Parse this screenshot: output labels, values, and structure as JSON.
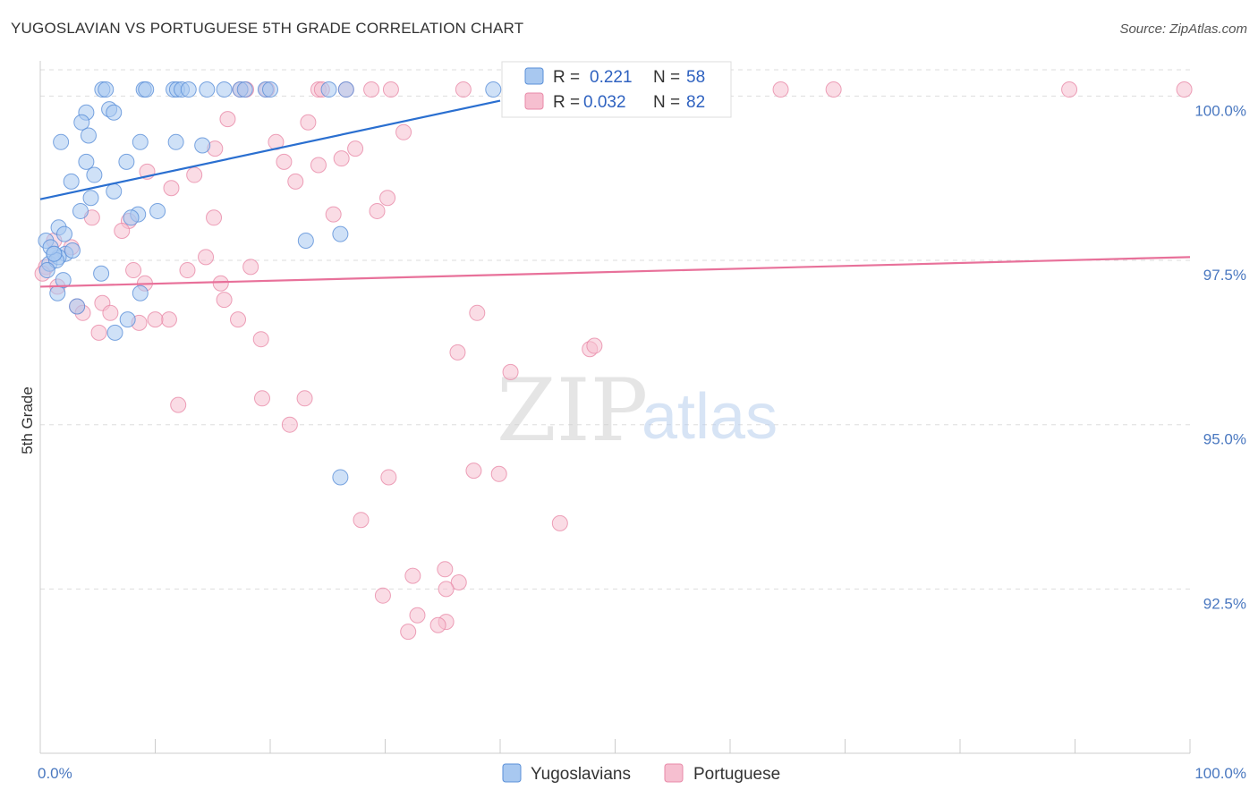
{
  "title": "YUGOSLAVIAN VS PORTUGUESE 5TH GRADE CORRELATION CHART",
  "source": "Source: ZipAtlas.com",
  "watermark": {
    "zip": "ZIP",
    "atlas": "atlas"
  },
  "colors": {
    "blue_fill": "#a8c8f0",
    "blue_stroke": "#5a8fd8",
    "blue_line": "#2a6fd0",
    "pink_fill": "#f6bfd0",
    "pink_stroke": "#e88aa8",
    "pink_line": "#e8719a",
    "grid": "#dddddd",
    "tick_text": "#4a78c0"
  },
  "legend": {
    "rows": [
      {
        "r_label": "R =",
        "r_value": "0.221",
        "n_label": "N =",
        "n_value": "58"
      },
      {
        "r_label": "R =",
        "r_value": "0.032",
        "n_label": "N =",
        "n_value": "82"
      }
    ]
  },
  "bottom_legend": [
    "Yugoslavians",
    "Portuguese"
  ],
  "chart_data": {
    "type": "scatter",
    "title": "YUGOSLAVIAN VS PORTUGUESE 5TH GRADE CORRELATION CHART",
    "xlabel": "",
    "ylabel": "5th Grade",
    "xlim": [
      0,
      100
    ],
    "ylim": [
      90.0,
      100.4
    ],
    "x_ticks": [
      0,
      100
    ],
    "x_tick_labels": [
      "0.0%",
      "100.0%"
    ],
    "y_ticks": [
      92.5,
      95.0,
      97.5,
      100.0
    ],
    "y_tick_labels": [
      "92.5%",
      "95.0%",
      "97.5%",
      "100.0%"
    ],
    "grid": true,
    "legend_position": "top-center",
    "series": [
      {
        "name": "Yugoslavians",
        "r": 0.221,
        "n": 58,
        "trend": {
          "x": [
            0,
            40
          ],
          "y": [
            98.43,
            99.93
          ]
        },
        "points": [
          [
            5.4,
            100.1
          ],
          [
            5.7,
            100.1
          ],
          [
            9,
            100.1
          ],
          [
            9.2,
            100.1
          ],
          [
            11.6,
            100.1
          ],
          [
            11.9,
            100.1
          ],
          [
            12.3,
            100.1
          ],
          [
            12.9,
            100.1
          ],
          [
            14.5,
            100.1
          ],
          [
            16,
            100.1
          ],
          [
            17.4,
            100.1
          ],
          [
            17.8,
            100.1
          ],
          [
            19.6,
            100.1
          ],
          [
            20,
            100.1
          ],
          [
            25.1,
            100.1
          ],
          [
            26.6,
            100.1
          ],
          [
            39.4,
            100.1
          ],
          [
            4,
            99.75
          ],
          [
            6,
            99.8
          ],
          [
            6.4,
            99.75
          ],
          [
            3.6,
            99.6
          ],
          [
            4.2,
            99.4
          ],
          [
            1.8,
            99.3
          ],
          [
            8.7,
            99.3
          ],
          [
            11.8,
            99.3
          ],
          [
            14.1,
            99.25
          ],
          [
            4,
            99.0
          ],
          [
            7.5,
            99.0
          ],
          [
            4.7,
            98.8
          ],
          [
            2.7,
            98.7
          ],
          [
            6.4,
            98.55
          ],
          [
            4.4,
            98.45
          ],
          [
            3.5,
            98.25
          ],
          [
            8.5,
            98.2
          ],
          [
            1.6,
            98.0
          ],
          [
            10.2,
            98.25
          ],
          [
            7.9,
            98.15
          ],
          [
            2.1,
            97.9
          ],
          [
            0.5,
            97.8
          ],
          [
            0.8,
            97.45
          ],
          [
            2.2,
            97.6
          ],
          [
            1.6,
            97.55
          ],
          [
            2.8,
            97.65
          ],
          [
            1.2,
            97.6
          ],
          [
            1.4,
            97.5
          ],
          [
            5.3,
            97.3
          ],
          [
            2,
            97.2
          ],
          [
            8.7,
            97.0
          ],
          [
            1.5,
            97.0
          ],
          [
            23.1,
            97.8
          ],
          [
            3.2,
            96.8
          ],
          [
            7.6,
            96.6
          ],
          [
            0.6,
            97.35
          ],
          [
            0.9,
            97.7
          ],
          [
            1.2,
            97.6
          ],
          [
            26.1,
            97.9
          ],
          [
            6.5,
            96.4
          ],
          [
            26.1,
            94.2
          ]
        ]
      },
      {
        "name": "Portuguese",
        "r": 0.032,
        "n": 82,
        "trend": {
          "x": [
            0,
            100
          ],
          "y": [
            97.1,
            97.55
          ]
        },
        "points": [
          [
            17.4,
            100.1
          ],
          [
            17.9,
            100.1
          ],
          [
            19.7,
            100.1
          ],
          [
            24.2,
            100.1
          ],
          [
            24.5,
            100.1
          ],
          [
            26.6,
            100.1
          ],
          [
            28.8,
            100.1
          ],
          [
            30.5,
            100.1
          ],
          [
            36.8,
            100.1
          ],
          [
            42.5,
            100.1
          ],
          [
            46.3,
            100.1
          ],
          [
            51.9,
            100.1
          ],
          [
            53.3,
            100.1
          ],
          [
            64.4,
            100.1
          ],
          [
            69,
            100.1
          ],
          [
            89.5,
            100.1
          ],
          [
            99.5,
            100.1
          ],
          [
            16.3,
            99.65
          ],
          [
            23.3,
            99.6
          ],
          [
            31.6,
            99.45
          ],
          [
            15.2,
            99.2
          ],
          [
            20.5,
            99.3
          ],
          [
            27.4,
            99.2
          ],
          [
            26.2,
            99.05
          ],
          [
            21.2,
            99.0
          ],
          [
            24.2,
            98.95
          ],
          [
            9.3,
            98.85
          ],
          [
            11.4,
            98.6
          ],
          [
            22.2,
            98.7
          ],
          [
            13.4,
            98.8
          ],
          [
            30.2,
            98.45
          ],
          [
            29.3,
            98.25
          ],
          [
            25.5,
            98.2
          ],
          [
            15.1,
            98.15
          ],
          [
            4.5,
            98.15
          ],
          [
            7.7,
            98.1
          ],
          [
            7.1,
            97.95
          ],
          [
            1.2,
            97.8
          ],
          [
            2.7,
            97.7
          ],
          [
            14.4,
            97.55
          ],
          [
            8.1,
            97.35
          ],
          [
            12.8,
            97.35
          ],
          [
            18.3,
            97.4
          ],
          [
            9.1,
            97.15
          ],
          [
            15.7,
            97.15
          ],
          [
            0.5,
            97.4
          ],
          [
            1.5,
            97.1
          ],
          [
            5.4,
            96.85
          ],
          [
            6.1,
            96.7
          ],
          [
            3.2,
            96.8
          ],
          [
            11.2,
            96.6
          ],
          [
            8.6,
            96.55
          ],
          [
            10,
            96.6
          ],
          [
            3.7,
            96.7
          ],
          [
            5.1,
            96.4
          ],
          [
            16,
            96.9
          ],
          [
            17.2,
            96.6
          ],
          [
            19.2,
            96.3
          ],
          [
            38,
            96.7
          ],
          [
            36.3,
            96.1
          ],
          [
            40.9,
            95.8
          ],
          [
            47.8,
            96.15
          ],
          [
            48.2,
            96.2
          ],
          [
            12,
            95.3
          ],
          [
            19.3,
            95.4
          ],
          [
            23,
            95.4
          ],
          [
            21.7,
            95.0
          ],
          [
            30.3,
            94.2
          ],
          [
            39.9,
            94.25
          ],
          [
            37.7,
            94.3
          ],
          [
            27.9,
            93.55
          ],
          [
            45.2,
            93.5
          ],
          [
            35.2,
            92.8
          ],
          [
            32.4,
            92.7
          ],
          [
            36.4,
            92.6
          ],
          [
            29.8,
            92.4
          ],
          [
            35.3,
            92.5
          ],
          [
            32.8,
            92.1
          ],
          [
            35.3,
            92.0
          ],
          [
            32,
            91.85
          ],
          [
            34.6,
            91.95
          ],
          [
            0.2,
            97.3
          ]
        ]
      }
    ]
  }
}
